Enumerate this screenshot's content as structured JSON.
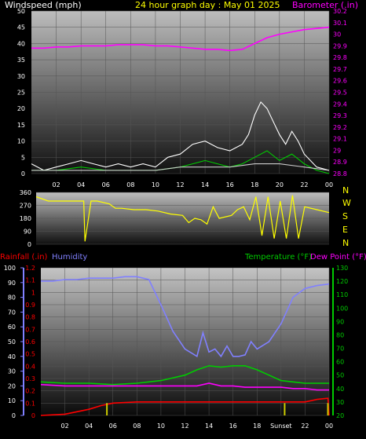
{
  "header": {
    "left": "Windspeed (mph)",
    "center": "24 hour graph day : May 01 2025",
    "right": "Barometer (.in)"
  },
  "chart_data": [
    {
      "type": "line",
      "left_axis": {
        "label": "Windspeed (mph)",
        "range": [
          0,
          50
        ],
        "ticks": [
          "0",
          "5",
          "10",
          "15",
          "20",
          "25",
          "30",
          "35",
          "40",
          "45",
          "50"
        ]
      },
      "right_axis": {
        "label": "Barometer (.in)",
        "range": [
          28.8,
          30.2
        ],
        "ticks": [
          "28.8",
          "28.9",
          "29",
          "29.1",
          "29.2",
          "29.3",
          "29.4",
          "29.5",
          "29.6",
          "29.7",
          "29.8",
          "29.9",
          "30",
          "30.1",
          "30.2"
        ]
      },
      "x_ticks": [
        "02",
        "04",
        "06",
        "08",
        "10",
        "12",
        "14",
        "16",
        "18",
        "20",
        "22",
        "00"
      ],
      "x_range_hours": [
        0,
        24
      ],
      "series": [
        {
          "axis": "right",
          "color": "#ff00ff",
          "x": [
            0,
            1,
            2,
            3,
            4,
            5,
            6,
            7,
            8,
            9,
            10,
            11,
            12,
            13,
            14,
            15,
            16,
            17,
            18,
            19,
            20,
            21,
            22,
            23,
            24
          ],
          "values": [
            29.88,
            29.88,
            29.89,
            29.89,
            29.9,
            29.9,
            29.9,
            29.91,
            29.91,
            29.91,
            29.9,
            29.9,
            29.89,
            29.88,
            29.87,
            29.87,
            29.86,
            29.87,
            29.92,
            29.97,
            30.0,
            30.02,
            30.04,
            30.05,
            30.06
          ]
        },
        {
          "color": "#ffffff",
          "x": [
            0,
            1,
            2,
            3,
            4,
            5,
            6,
            7,
            8,
            9,
            10,
            11,
            12,
            13,
            14,
            15,
            16,
            17,
            17.5,
            18,
            18.5,
            19,
            19.5,
            20,
            20.5,
            21,
            21.5,
            22,
            23,
            24
          ],
          "values": [
            3,
            1,
            2,
            3,
            4,
            3,
            2,
            3,
            2,
            3,
            2,
            5,
            6,
            9,
            10,
            8,
            7,
            9,
            12,
            18,
            22,
            20,
            16,
            12,
            9,
            13,
            10,
            6,
            2,
            1
          ]
        },
        {
          "color": "#00cc00",
          "x": [
            0,
            2,
            4,
            6,
            8,
            10,
            12,
            13,
            14,
            15,
            16,
            17,
            18,
            19,
            20,
            21,
            22,
            23,
            24
          ],
          "values": [
            1,
            1,
            2,
            1,
            1,
            1,
            2,
            3,
            4,
            3,
            2,
            3,
            5,
            7,
            4,
            6,
            3,
            1,
            0
          ]
        },
        {
          "color": "#cccccc",
          "x": [
            0,
            2,
            4,
            6,
            8,
            10,
            12,
            14,
            16,
            18,
            20,
            22,
            24
          ],
          "values": [
            1,
            1,
            1,
            1,
            1,
            1,
            2,
            2,
            2,
            3,
            3,
            2,
            1
          ]
        }
      ]
    },
    {
      "type": "line",
      "left_axis": {
        "label": "",
        "range": [
          0,
          360
        ],
        "ticks": [
          "0",
          "90",
          "180",
          "270",
          "360"
        ]
      },
      "right_labels": [
        "N",
        "W",
        "S",
        "E",
        "N"
      ],
      "x_range_hours": [
        0,
        24
      ],
      "series": [
        {
          "name": "Wind direction",
          "color": "#ffff00",
          "x": [
            0,
            1,
            2,
            3,
            3.9,
            4.0,
            4.5,
            5,
            6,
            6.5,
            7,
            8,
            9,
            10,
            11,
            12,
            12.5,
            13,
            13.5,
            14,
            14.5,
            15,
            16,
            16.5,
            17,
            17.5,
            18,
            18.5,
            19,
            19.5,
            20,
            20.5,
            21,
            21.5,
            22,
            23,
            24
          ],
          "values": [
            330,
            300,
            300,
            300,
            300,
            20,
            300,
            300,
            280,
            250,
            250,
            240,
            240,
            230,
            210,
            200,
            150,
            180,
            170,
            140,
            260,
            180,
            200,
            240,
            260,
            170,
            330,
            60,
            330,
            40,
            300,
            40,
            340,
            40,
            260,
            240,
            220
          ]
        }
      ]
    },
    {
      "type": "line",
      "left_axis": {
        "label": "Rainfall (.in)",
        "range": [
          0,
          1.2
        ],
        "ticks": [
          "0",
          "0.1",
          "0.2",
          "0.3",
          "0.4",
          "0.5",
          "0.6",
          "0.7",
          "0.8",
          "0.9",
          "1",
          "1.1",
          "1.2"
        ]
      },
      "left_axis_2": {
        "label": "Humidity",
        "range": [
          0,
          100
        ],
        "ticks": [
          "0",
          "10",
          "20",
          "30",
          "40",
          "50",
          "60",
          "70",
          "80",
          "90",
          "100"
        ]
      },
      "right_axis": {
        "label": "Temperature (°F)",
        "range": [
          20,
          130
        ],
        "ticks": [
          "20",
          "30",
          "40",
          "50",
          "60",
          "70",
          "80",
          "90",
          "100",
          "110",
          "120",
          "130"
        ]
      },
      "right_axis_label_2": "Dew Point (°F)",
      "x_ticks": [
        "02",
        "04",
        "06",
        "08",
        "10",
        "12",
        "14",
        "16",
        "18",
        "Sunset",
        "22",
        "00"
      ],
      "x_range_hours": [
        0,
        24
      ],
      "series": [
        {
          "axis": "left_2",
          "color": "#8080ff",
          "x": [
            0,
            1,
            2,
            3,
            4,
            5,
            6,
            7,
            8,
            9,
            10,
            11,
            12,
            13,
            13.5,
            14,
            14.5,
            15,
            15.5,
            16,
            16.5,
            17,
            17.5,
            18,
            19,
            20,
            21,
            22,
            23,
            24
          ],
          "values": [
            91,
            91,
            92,
            92,
            93,
            93,
            93,
            94,
            94,
            92,
            75,
            57,
            45,
            40,
            56,
            43,
            45,
            40,
            47,
            40,
            40,
            41,
            50,
            45,
            50,
            62,
            80,
            86,
            88,
            89
          ]
        },
        {
          "axis": "right",
          "color": "#00cc00",
          "x": [
            0,
            2,
            4,
            6,
            8,
            10,
            12,
            13,
            14,
            15,
            16,
            17,
            18,
            19,
            20,
            21,
            22,
            23,
            24
          ],
          "values": [
            45,
            44,
            44,
            43,
            44,
            46,
            50,
            54,
            57,
            56,
            57,
            57,
            54,
            50,
            46,
            45,
            44,
            44,
            44
          ]
        },
        {
          "axis": "right",
          "color": "#ff00ff",
          "x": [
            0,
            2,
            4,
            6,
            8,
            10,
            12,
            13,
            14,
            15,
            16,
            17,
            18,
            19,
            20,
            21,
            22,
            23,
            24
          ],
          "values": [
            43,
            42,
            42,
            42,
            42,
            42,
            42,
            42,
            44,
            42,
            42,
            41,
            41,
            41,
            41,
            40,
            40,
            39,
            39
          ]
        },
        {
          "axis": "left",
          "color": "#ff0000",
          "x": [
            0,
            2,
            3,
            4,
            5,
            6,
            8,
            12,
            16,
            20,
            22,
            23,
            23.9,
            24
          ],
          "values": [
            0,
            0.01,
            0.03,
            0.05,
            0.08,
            0.1,
            0.11,
            0.11,
            0.11,
            0.11,
            0.11,
            0.13,
            0.14,
            0
          ]
        },
        {
          "color": "#cccc00",
          "bars_x": [
            5.5,
            20.3,
            23.9
          ],
          "bars_value": [
            0.1,
            0.1,
            0.1
          ]
        }
      ]
    }
  ],
  "panel3_header": {
    "rain": "Rainfall (.in)",
    "humidity": "Humidity",
    "temp": "Temperature (°F)",
    "dew": "Dew Point (°F)"
  }
}
